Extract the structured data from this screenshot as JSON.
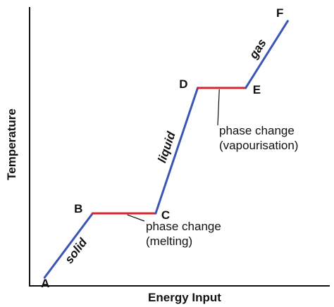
{
  "chart_data": {
    "type": "line",
    "title": "",
    "xlabel": "Energy Input",
    "ylabel": "Temperature",
    "xlim": [
      0,
      100
    ],
    "ylim": [
      0,
      100
    ],
    "grid": false,
    "legend": "none",
    "axis_ticks": "none",
    "points": [
      {
        "label": "A",
        "x": 5,
        "y": 3
      },
      {
        "label": "B",
        "x": 21,
        "y": 26
      },
      {
        "label": "C",
        "x": 42,
        "y": 26
      },
      {
        "label": "D",
        "x": 56,
        "y": 71
      },
      {
        "label": "E",
        "x": 72,
        "y": 71
      },
      {
        "label": "F",
        "x": 86,
        "y": 95
      }
    ],
    "segments": [
      {
        "from": "A",
        "to": "B",
        "phase": "solid",
        "label": "solid",
        "color": "#3a56b4"
      },
      {
        "from": "B",
        "to": "C",
        "phase": "phase change",
        "color": "#d9242c"
      },
      {
        "from": "C",
        "to": "D",
        "phase": "liquid",
        "label": "liquid",
        "color": "#3a56b4"
      },
      {
        "from": "D",
        "to": "E",
        "phase": "phase change",
        "color": "#d9242c"
      },
      {
        "from": "E",
        "to": "F",
        "phase": "gas",
        "label": "gas",
        "color": "#3a56b4"
      }
    ],
    "annotations": [
      {
        "lines": [
          "phase change",
          "(melting)"
        ],
        "segment": 1
      },
      {
        "lines": [
          "phase change",
          "(vapourisation)"
        ],
        "segment": 3
      }
    ],
    "colors": {
      "curve": "#3a56b4",
      "plateau": "#d9242c",
      "axis": "#111111",
      "text": "#111111"
    }
  }
}
